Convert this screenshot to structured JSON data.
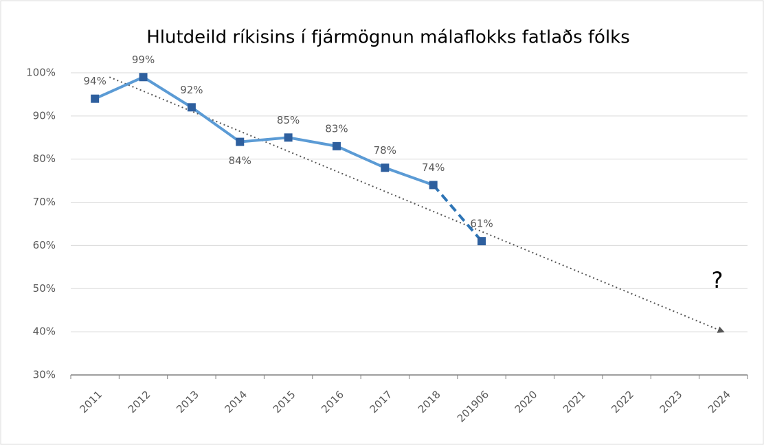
{
  "chart_data": {
    "type": "line",
    "title": "Hlutdeild ríkisins í fjármögnun málaflokks fatlaðs fólks",
    "categories": [
      "2011",
      "2012",
      "2013",
      "2014",
      "2015",
      "2016",
      "2017",
      "2018",
      "201906",
      "2020",
      "2021",
      "2022",
      "2023",
      "2024"
    ],
    "values": [
      94,
      99,
      92,
      84,
      85,
      83,
      78,
      74,
      61,
      null,
      null,
      null,
      null,
      null
    ],
    "value_labels": [
      "94%",
      "99%",
      "92%",
      "84%",
      "85%",
      "83%",
      "78%",
      "74%",
      "61%",
      null,
      null,
      null,
      null,
      null
    ],
    "value_label_positions": [
      "above",
      "above",
      "above",
      "below",
      "above",
      "above",
      "above",
      "above",
      "above",
      null,
      null,
      null,
      null,
      null
    ],
    "dashed_segments": [
      7
    ],
    "color": "#5b9bd5",
    "marker_color": "#2e5f9e",
    "trend": {
      "x": [
        0.3,
        13
      ],
      "values": [
        99,
        40
      ],
      "style": "dotted",
      "color": "#555555",
      "arrow": true
    },
    "annotation": "?",
    "ylim": [
      30,
      100
    ],
    "yticks": [
      {
        "value": 30,
        "label": "30%"
      },
      {
        "value": 40,
        "label": "40%"
      },
      {
        "value": 50,
        "label": "50%"
      },
      {
        "value": 60,
        "label": "60%"
      },
      {
        "value": 70,
        "label": "70%"
      },
      {
        "value": 80,
        "label": "80%"
      },
      {
        "value": 90,
        "label": "90%"
      },
      {
        "value": 100,
        "label": "100%"
      }
    ],
    "grid": true
  }
}
